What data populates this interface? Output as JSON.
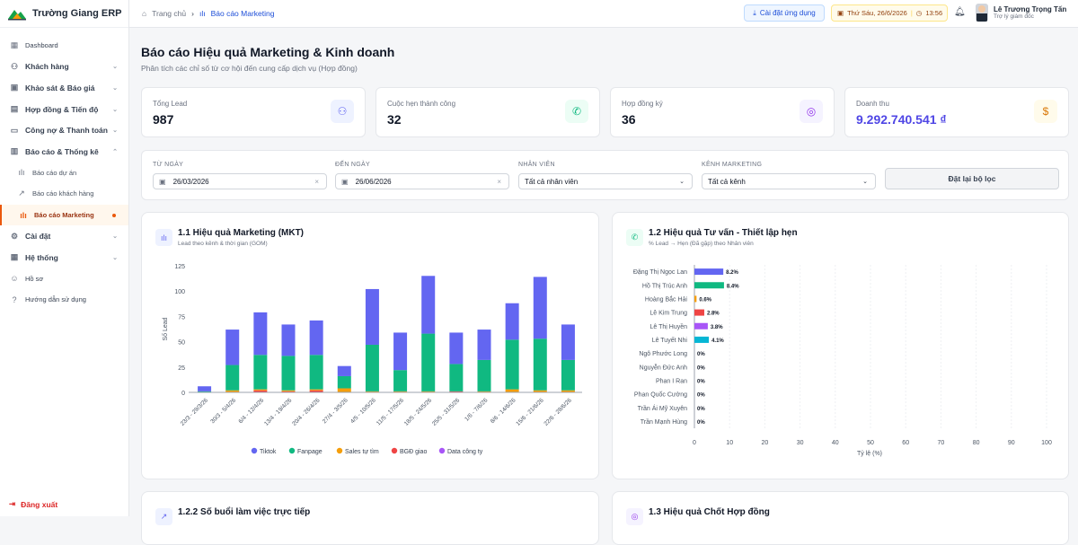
{
  "app": {
    "name": "Trường Giang ERP"
  },
  "sidebar": {
    "items": [
      {
        "label": "Dashboard",
        "icon": "grid-icon"
      },
      {
        "label": "Khách hàng",
        "icon": "users-icon"
      },
      {
        "label": "Khảo sát & Báo giá",
        "icon": "clipboard-icon"
      },
      {
        "label": "Hợp đồng & Tiến độ",
        "icon": "briefcase-icon"
      },
      {
        "label": "Công nợ & Thanh toán",
        "icon": "wallet-icon"
      },
      {
        "label": "Báo cáo & Thống kê",
        "icon": "chart-icon"
      },
      {
        "label": "Báo cáo dự án",
        "icon": "bar-icon"
      },
      {
        "label": "Báo cáo khách hàng",
        "icon": "trend-icon"
      },
      {
        "label": "Báo cáo Marketing",
        "icon": "chart-icon"
      },
      {
        "label": "Cài đặt",
        "icon": "gear-icon"
      },
      {
        "label": "Hệ thống",
        "icon": "server-icon"
      },
      {
        "label": "Hồ sơ",
        "icon": "user-icon"
      },
      {
        "label": "Hướng dẫn sử dụng",
        "icon": "help-icon"
      }
    ],
    "logout": "Đăng xuất"
  },
  "topbar": {
    "breadcrumb_home": "Trang chủ",
    "breadcrumb_current": "Báo cáo Marketing",
    "install": "Cài đặt ứng dụng",
    "date": "Thứ Sáu, 26/6/2026",
    "time": "13:56",
    "user_name": "Lê Trương Trọng Tấn",
    "user_role": "Trợ lý giám đốc"
  },
  "page": {
    "title": "Báo cáo Hiệu quả Marketing & Kinh doanh",
    "subtitle": "Phân tích các chỉ số từ cơ hội đến cung cấp dịch vụ (Hợp đồng)"
  },
  "kpis": [
    {
      "label": "Tổng Lead",
      "value": "987",
      "color": "#6366f1",
      "bg": "#eef2ff"
    },
    {
      "label": "Cuộc hẹn thành công",
      "value": "32",
      "color": "#10b981",
      "bg": "#ecfdf5"
    },
    {
      "label": "Hợp đồng ký",
      "value": "36",
      "color": "#9333ea",
      "bg": "#f5f3ff"
    },
    {
      "label": "Doanh thu",
      "value": "9.292.740.541 ₫",
      "color": "#d97706",
      "bg": "#fffbeb"
    }
  ],
  "filters": {
    "from_label": "TỪ NGÀY",
    "from_value": "26/03/2026",
    "to_label": "ĐẾN NGÀY",
    "to_value": "26/06/2026",
    "staff_label": "NHÂN VIÊN",
    "staff_value": "Tất cả nhân viên",
    "channel_label": "KÊNH MARKETING",
    "channel_value": "Tất cả kênh",
    "reset": "Đặt lại bộ lọc"
  },
  "card1": {
    "title": "1.1 Hiệu quả Marketing (MKT)",
    "subtitle": "Lead theo kênh & thời gian (GOM)"
  },
  "card2": {
    "title": "1.2 Hiệu quả Tư vấn - Thiết lập hẹn",
    "subtitle": "% Lead → Hẹn (Đã gặp) theo Nhân viên"
  },
  "card3": {
    "title": "1.2.2 Số buổi làm việc trực tiếp"
  },
  "card4": {
    "title": "1.3 Hiệu quả Chốt Hợp đồng"
  },
  "chart_data": [
    {
      "type": "bar",
      "stacked": true,
      "ylabel": "Số Lead",
      "ylim": [
        0,
        125
      ],
      "yticks": [
        0,
        25,
        50,
        75,
        100,
        125
      ],
      "grid": false,
      "legend": "bottom",
      "categories": [
        "23/3 - 29/3/26",
        "30/3 - 5/4/26",
        "6/4 - 12/4/26",
        "13/4 - 19/4/26",
        "20/4 - 26/4/26",
        "27/4 - 3/5/26",
        "4/5 - 10/5/26",
        "11/5 - 17/5/26",
        "18/5 - 24/5/26",
        "25/5 - 31/5/26",
        "1/6 - 7/6/26",
        "8/6 - 14/6/26",
        "15/6 - 21/6/26",
        "22/6 - 28/6/26"
      ],
      "series": [
        {
          "name": "Data công ty",
          "color": "#a855f7",
          "values": [
            0,
            0,
            0,
            0,
            0,
            0,
            0,
            0,
            0,
            0,
            0,
            0,
            0,
            0
          ]
        },
        {
          "name": "BGĐ giao",
          "color": "#ef4444",
          "values": [
            0,
            0,
            2,
            1,
            2,
            0,
            0,
            0,
            0,
            1,
            0,
            0,
            0,
            0
          ]
        },
        {
          "name": "Sales tự tìm",
          "color": "#f59e0b",
          "values": [
            0,
            2,
            1,
            1,
            1,
            4,
            1,
            1,
            1,
            0,
            1,
            3,
            2,
            2
          ]
        },
        {
          "name": "Fanpage",
          "color": "#10b981",
          "values": [
            1,
            25,
            34,
            34,
            34,
            12,
            46,
            21,
            57,
            27,
            31,
            49,
            51,
            30
          ],
          "dummy": false
        },
        {
          "name": "Tiktok",
          "color": "#6366f1",
          "values": [
            5,
            35,
            42,
            31,
            34,
            10,
            55,
            37,
            57,
            31,
            30,
            36,
            61,
            35
          ]
        }
      ]
    },
    {
      "type": "bar",
      "orientation": "horizontal",
      "xlabel": "Tỷ lệ (%)",
      "xlim": [
        0,
        100
      ],
      "xticks": [
        0,
        10,
        20,
        30,
        40,
        50,
        60,
        70,
        80,
        90,
        100
      ],
      "categories": [
        "Đặng Thị Ngọc Lan",
        "Hồ Thị Trúc Anh",
        "Hoàng Bắc Hải",
        "Lê Kim Trung",
        "Lê Thị Huyền",
        "Lê Tuyết Nhi",
        "Ngô Phước Long",
        "Nguyễn Đức Anh",
        "Phan I Ran",
        "Phan Quốc Cường",
        "Trần Ái Mỹ Xuyên",
        "Trần Mạnh Hùng"
      ],
      "values": [
        8.2,
        8.4,
        0.6,
        2.8,
        3.8,
        4.1,
        0,
        0,
        0,
        0,
        0,
        0
      ],
      "labels": [
        "8.2%",
        "8.4%",
        "0.6%",
        "2.8%",
        "3.8%",
        "4.1%",
        "0%",
        "0%",
        "0%",
        "0%",
        "0%",
        "0%"
      ],
      "colors": [
        "#6366f1",
        "#10b981",
        "#f59e0b",
        "#ef4444",
        "#a855f7",
        "#06b6d4",
        "#6366f1",
        "#10b981",
        "#f59e0b",
        "#ef4444",
        "#a855f7",
        "#06b6d4"
      ]
    }
  ]
}
